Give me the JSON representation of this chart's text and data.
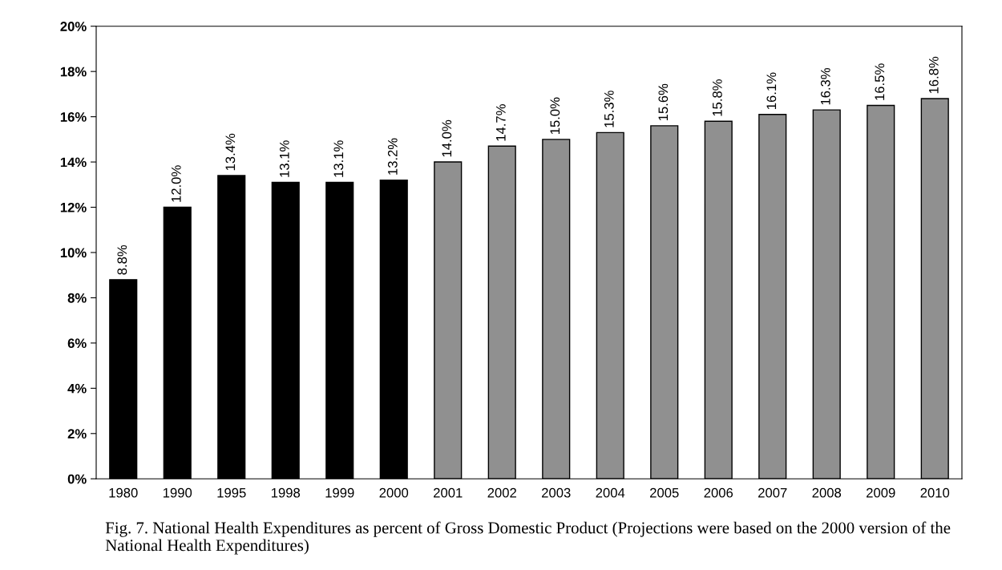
{
  "chart_data": {
    "type": "bar",
    "categories": [
      "1980",
      "1990",
      "1995",
      "1998",
      "1999",
      "2000",
      "2001",
      "2002",
      "2003",
      "2004",
      "2005",
      "2006",
      "2007",
      "2008",
      "2009",
      "2010"
    ],
    "values": [
      8.8,
      12.0,
      13.4,
      13.1,
      13.1,
      13.2,
      14.0,
      14.7,
      15.0,
      15.3,
      15.6,
      15.8,
      16.1,
      16.3,
      16.5,
      16.8
    ],
    "colors": [
      "#000000",
      "#000000",
      "#000000",
      "#000000",
      "#000000",
      "#000000",
      "#909090",
      "#909090",
      "#909090",
      "#909090",
      "#909090",
      "#909090",
      "#909090",
      "#909090",
      "#909090",
      "#909090"
    ],
    "value_labels": [
      "8.8%",
      "12.0%",
      "13.4%",
      "13.1%",
      "13.1%",
      "13.2%",
      "14.0%",
      "14.7%",
      "15.0%",
      "15.3%",
      "15.6%",
      "15.8%",
      "16.1%",
      "16.3%",
      "16.5%",
      "16.8%"
    ],
    "ylim": [
      0,
      20
    ],
    "yticks": [
      {
        "value": 0,
        "label": "0%"
      },
      {
        "value": 2,
        "label": "2%"
      },
      {
        "value": 4,
        "label": "4%"
      },
      {
        "value": 6,
        "label": "6%"
      },
      {
        "value": 8,
        "label": "8%"
      },
      {
        "value": 10,
        "label": "10%"
      },
      {
        "value": 12,
        "label": "12%"
      },
      {
        "value": 14,
        "label": "14%"
      },
      {
        "value": 16,
        "label": "16%"
      },
      {
        "value": 18,
        "label": "18%"
      },
      {
        "value": 20,
        "label": "20%"
      }
    ],
    "grid": false,
    "legend": false,
    "annotations": [
      "Fig. 7. National Health Expenditures as percent of Gross Domestic Product (Projections were based on the 2000 version of the National Health Expenditures)"
    ]
  }
}
